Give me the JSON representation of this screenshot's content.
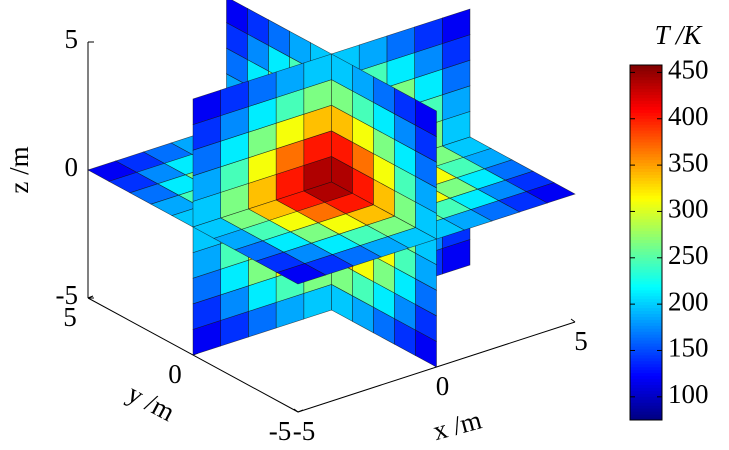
{
  "chart_data": {
    "type": "slice3d",
    "xlabel": "x /m",
    "ylabel": "y /m",
    "zlabel": "z /m",
    "xlim": [
      -5,
      5
    ],
    "ylim": [
      -5,
      5
    ],
    "zlim": [
      -5,
      5
    ],
    "xticks": [
      -5,
      0,
      5
    ],
    "yticks": [
      -5,
      0,
      5
    ],
    "zticks": [
      -5,
      0,
      5
    ],
    "colorbar_title": "T /K",
    "colormap": "jet",
    "clim": [
      75,
      458
    ],
    "cticks": [
      100,
      150,
      200,
      250,
      300,
      350,
      400,
      450
    ],
    "slices": [
      {
        "plane": "x",
        "values": [
          [
            119,
            141,
            165,
            186,
            198,
            198,
            186,
            165,
            141,
            119
          ],
          [
            141,
            175,
            212,
            245,
            265,
            265,
            245,
            212,
            175,
            141
          ],
          [
            165,
            212,
            265,
            311,
            338,
            338,
            311,
            265,
            212,
            165
          ],
          [
            186,
            245,
            311,
            368,
            402,
            402,
            368,
            311,
            245,
            186
          ],
          [
            198,
            265,
            338,
            402,
            440,
            440,
            402,
            338,
            265,
            198
          ],
          [
            198,
            265,
            338,
            402,
            440,
            440,
            402,
            338,
            265,
            198
          ],
          [
            186,
            245,
            311,
            368,
            402,
            402,
            368,
            311,
            245,
            186
          ],
          [
            165,
            212,
            265,
            311,
            338,
            338,
            311,
            265,
            212,
            165
          ],
          [
            141,
            175,
            212,
            245,
            265,
            265,
            245,
            212,
            175,
            141
          ],
          [
            119,
            141,
            165,
            186,
            198,
            198,
            186,
            165,
            141,
            119
          ]
        ]
      },
      {
        "plane": "y",
        "values": [
          [
            119,
            141,
            165,
            186,
            198,
            198,
            186,
            165,
            141,
            119
          ],
          [
            141,
            175,
            212,
            245,
            265,
            265,
            245,
            212,
            175,
            141
          ],
          [
            165,
            212,
            265,
            311,
            338,
            338,
            311,
            265,
            212,
            165
          ],
          [
            186,
            245,
            311,
            368,
            402,
            402,
            368,
            311,
            245,
            186
          ],
          [
            198,
            265,
            338,
            402,
            440,
            440,
            402,
            338,
            265,
            198
          ],
          [
            198,
            265,
            338,
            402,
            440,
            440,
            402,
            338,
            265,
            198
          ],
          [
            186,
            245,
            311,
            368,
            402,
            402,
            368,
            311,
            245,
            186
          ],
          [
            165,
            212,
            265,
            311,
            338,
            338,
            311,
            265,
            212,
            165
          ],
          [
            141,
            175,
            212,
            245,
            265,
            265,
            245,
            212,
            175,
            141
          ],
          [
            119,
            141,
            165,
            186,
            198,
            198,
            186,
            165,
            141,
            119
          ]
        ]
      },
      {
        "plane": "z",
        "values": [
          [
            119,
            141,
            165,
            186,
            198,
            198,
            186,
            165,
            141,
            119
          ],
          [
            141,
            175,
            212,
            245,
            265,
            265,
            245,
            212,
            175,
            141
          ],
          [
            165,
            212,
            265,
            311,
            338,
            338,
            311,
            265,
            212,
            165
          ],
          [
            186,
            245,
            311,
            368,
            402,
            402,
            368,
            311,
            245,
            186
          ],
          [
            198,
            265,
            338,
            402,
            440,
            440,
            402,
            338,
            265,
            198
          ],
          [
            198,
            265,
            338,
            402,
            440,
            440,
            402,
            338,
            265,
            198
          ],
          [
            186,
            245,
            311,
            368,
            402,
            402,
            368,
            311,
            245,
            186
          ],
          [
            165,
            212,
            265,
            311,
            338,
            338,
            311,
            265,
            212,
            165
          ],
          [
            141,
            175,
            212,
            245,
            265,
            265,
            245,
            212,
            175,
            141
          ],
          [
            119,
            141,
            165,
            186,
            198,
            198,
            186,
            165,
            141,
            119
          ]
        ]
      }
    ]
  }
}
